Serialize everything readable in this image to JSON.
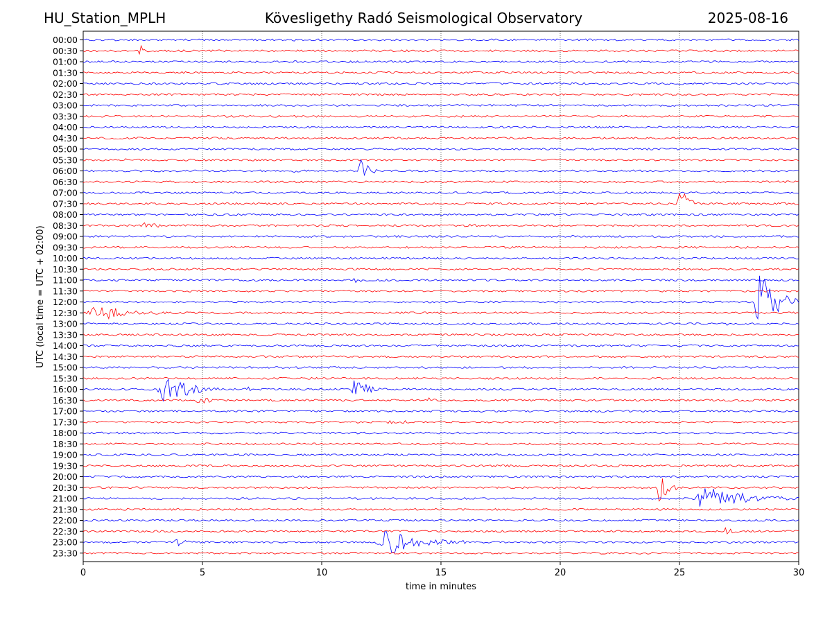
{
  "header": {
    "station": "HU_Station_MPLH",
    "observatory": "Kövesligethy Radó Seismological Observatory",
    "date": "2025-08-16"
  },
  "chart_data": {
    "type": "line",
    "title": "Kövesligethy Radó Seismological Observatory",
    "xlabel": "time in minutes",
    "ylabel": "UTC (local time = UTC + 02:00)",
    "xlim": [
      0,
      30
    ],
    "x_ticks": [
      "0",
      "5",
      "10",
      "15",
      "20",
      "25",
      "30"
    ],
    "x_grid": "dotted vertical lines at 5, 10, 15, 20, 25",
    "rows": [
      "00:00",
      "00:30",
      "01:00",
      "01:30",
      "02:00",
      "02:30",
      "03:00",
      "03:30",
      "04:00",
      "04:30",
      "05:00",
      "05:30",
      "06:00",
      "06:30",
      "07:00",
      "07:30",
      "08:00",
      "08:30",
      "09:00",
      "09:30",
      "10:00",
      "10:30",
      "11:00",
      "11:30",
      "12:00",
      "12:30",
      "13:00",
      "13:30",
      "14:00",
      "14:30",
      "15:00",
      "15:30",
      "16:00",
      "16:30",
      "17:00",
      "17:30",
      "18:00",
      "18:30",
      "19:00",
      "19:30",
      "20:00",
      "20:30",
      "21:00",
      "21:30",
      "22:00",
      "22:30",
      "23:00",
      "23:30"
    ],
    "colors": {
      "even_rows": "#0000ff",
      "odd_rows": "#ff0000"
    },
    "noise_amplitude": 0.09,
    "events": [
      {
        "row": "00:00",
        "start": 8.8,
        "duration": 0.6,
        "amp": 0.3
      },
      {
        "row": "00:30",
        "start": 2.3,
        "duration": 0.8,
        "amp": 0.55
      },
      {
        "row": "01:00",
        "start": 0.1,
        "duration": 0.5,
        "amp": 0.25
      },
      {
        "row": "05:30",
        "start": 1.7,
        "duration": 0.4,
        "amp": 0.2
      },
      {
        "row": "06:00",
        "start": 8.8,
        "duration": 0.5,
        "amp": 0.25
      },
      {
        "row": "06:00",
        "start": 11.5,
        "duration": 0.8,
        "amp": 1.6
      },
      {
        "row": "07:30",
        "start": 24.9,
        "duration": 0.9,
        "amp": 1.6
      },
      {
        "row": "08:30",
        "start": 2.4,
        "duration": 1.8,
        "amp": 0.35
      },
      {
        "row": "08:30",
        "start": 15.7,
        "duration": 1.8,
        "amp": 0.25
      },
      {
        "row": "10:30",
        "start": 19.7,
        "duration": 0.3,
        "amp": 0.25
      },
      {
        "row": "11:00",
        "start": 11.35,
        "duration": 0.35,
        "amp": 0.9
      },
      {
        "row": "12:00",
        "start": 28.1,
        "duration": 1.9,
        "amp": 3.0
      },
      {
        "row": "12:30",
        "start": 0.05,
        "duration": 3.5,
        "amp": 0.9
      },
      {
        "row": "12:30",
        "start": 1.6,
        "duration": 1.2,
        "amp": 0.5
      },
      {
        "row": "13:00",
        "start": 26.9,
        "duration": 0.5,
        "amp": 0.25
      },
      {
        "row": "16:00",
        "start": 3.05,
        "duration": 2.6,
        "amp": 1.5
      },
      {
        "row": "16:00",
        "start": 3.8,
        "duration": 1.4,
        "amp": 1.3
      },
      {
        "row": "16:00",
        "start": 6.7,
        "duration": 0.8,
        "amp": 0.4
      },
      {
        "row": "16:00",
        "start": 11.2,
        "duration": 1.6,
        "amp": 1.0
      },
      {
        "row": "16:30",
        "start": 4.6,
        "duration": 1.8,
        "amp": 0.4
      },
      {
        "row": "16:30",
        "start": 14.4,
        "duration": 0.8,
        "amp": 0.25
      },
      {
        "row": "17:30",
        "start": 12.6,
        "duration": 2.6,
        "amp": 0.25
      },
      {
        "row": "20:30",
        "start": 24.0,
        "duration": 0.9,
        "amp": 2.0
      },
      {
        "row": "21:00",
        "start": 25.5,
        "duration": 4.5,
        "amp": 1.2
      },
      {
        "row": "22:30",
        "start": 26.8,
        "duration": 1.0,
        "amp": 0.35
      },
      {
        "row": "23:00",
        "start": 3.8,
        "duration": 1.2,
        "amp": 0.5
      },
      {
        "row": "23:00",
        "start": 12.2,
        "duration": 3.8,
        "amp": 1.2
      },
      {
        "row": "23:00",
        "start": 15.8,
        "duration": 0.6,
        "amp": 0.3
      }
    ]
  }
}
